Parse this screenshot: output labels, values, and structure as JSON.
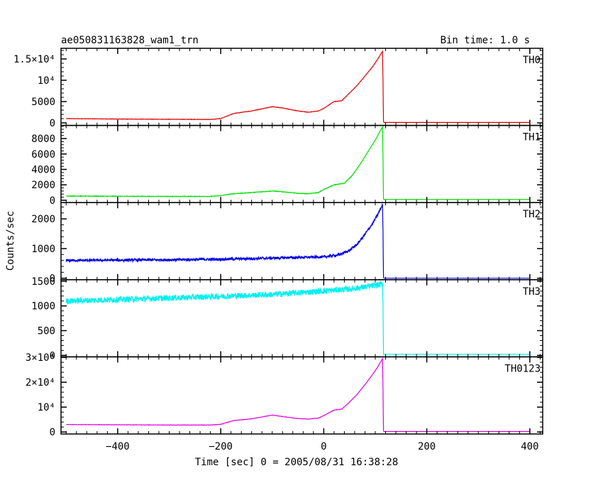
{
  "chart_data": {
    "type": "line",
    "title": "ae050831163828_wam1_trn",
    "subtitle": "Bin time: 1.0 s",
    "xlabel": "Time [sec] 0 = 2005/08/31 16:38:28",
    "ylabel": "Counts/sec",
    "xlim": [
      -510,
      425
    ],
    "x_ticks": [
      "−400",
      "−200",
      "0",
      "200",
      "400"
    ],
    "x_tick_values": [
      -400,
      -200,
      0,
      200,
      400
    ],
    "grid": false,
    "panels": [
      {
        "name": "TH0",
        "color": "#e00000",
        "ylim": [
          -600,
          17500
        ],
        "yticks": [
          {
            "v": 0,
            "label": "0"
          },
          {
            "v": 5000,
            "label": "5000"
          },
          {
            "v": 10000,
            "label": "10⁴"
          },
          {
            "v": 15000,
            "label": "1.5×10⁴"
          }
        ],
        "noise": 40,
        "x": [
          -500,
          -400,
          -300,
          -220,
          -200,
          -175,
          -140,
          -100,
          -80,
          -50,
          -30,
          -10,
          0,
          20,
          35,
          50,
          65,
          80,
          95,
          105,
          114,
          115,
          116,
          117,
          400
        ],
        "values": [
          1000,
          900,
          850,
          800,
          1000,
          2200,
          2800,
          3800,
          3500,
          2800,
          2500,
          2800,
          3400,
          5000,
          5200,
          7000,
          8800,
          11000,
          13200,
          15000,
          16800,
          10000,
          300,
          100,
          100
        ]
      },
      {
        "name": "TH1",
        "color": "#00e000",
        "ylim": [
          -300,
          9700
        ],
        "yticks": [
          {
            "v": 0,
            "label": "0"
          },
          {
            "v": 2000,
            "label": "2000"
          },
          {
            "v": 4000,
            "label": "4000"
          },
          {
            "v": 6000,
            "label": "6000"
          },
          {
            "v": 8000,
            "label": "8000"
          }
        ],
        "noise": 30,
        "x": [
          -500,
          -400,
          -300,
          -220,
          -200,
          -175,
          -140,
          -100,
          -80,
          -50,
          -30,
          -10,
          0,
          20,
          40,
          55,
          70,
          85,
          100,
          114,
          115,
          116,
          117,
          400
        ],
        "values": [
          550,
          520,
          500,
          500,
          600,
          850,
          1000,
          1200,
          1100,
          900,
          850,
          1000,
          1400,
          2000,
          2200,
          3200,
          4600,
          6200,
          7800,
          9500,
          5600,
          200,
          100,
          100
        ]
      },
      {
        "name": "TH2",
        "color": "#0000e0",
        "ylim": [
          -50,
          2550
        ],
        "yticks": [
          {
            "v": 0,
            "label": "0"
          },
          {
            "v": 1000,
            "label": "1000"
          },
          {
            "v": 2000,
            "label": "2000"
          }
        ],
        "noise": 45,
        "x": [
          -500,
          -300,
          -200,
          -100,
          -50,
          0,
          30,
          50,
          65,
          80,
          95,
          105,
          114,
          115,
          116,
          117,
          400
        ],
        "values": [
          600,
          620,
          640,
          680,
          700,
          720,
          790,
          940,
          1150,
          1480,
          1850,
          2150,
          2480,
          1600,
          30,
          0,
          0
        ]
      },
      {
        "name": "TH3",
        "color": "#00f0f0",
        "ylim": [
          -30,
          1530
        ],
        "yticks": [
          {
            "v": 0,
            "label": "0"
          },
          {
            "v": 500,
            "label": "500"
          },
          {
            "v": 1000,
            "label": "1000"
          },
          {
            "v": 1500,
            "label": "1500"
          }
        ],
        "noise": 60,
        "x": [
          -500,
          -300,
          -100,
          50,
          110,
          114,
          115,
          116,
          117,
          400
        ],
        "values": [
          1100,
          1160,
          1230,
          1340,
          1430,
          1450,
          1050,
          20,
          20,
          20
        ]
      },
      {
        "name": "TH0123",
        "color": "#e000e0",
        "ylim": [
          -800,
          30200
        ],
        "yticks": [
          {
            "v": 0,
            "label": "0"
          },
          {
            "v": 10000,
            "label": "10⁴"
          },
          {
            "v": 20000,
            "label": "2×10⁴"
          },
          {
            "v": 30000,
            "label": "3×10⁴"
          }
        ],
        "noise": 50,
        "x": [
          -500,
          -400,
          -300,
          -220,
          -200,
          -175,
          -140,
          -100,
          -80,
          -50,
          -30,
          -10,
          0,
          20,
          35,
          50,
          65,
          80,
          95,
          105,
          114,
          115,
          116,
          117,
          400
        ],
        "values": [
          3000,
          2900,
          2800,
          2800,
          3100,
          4600,
          5300,
          6800,
          6200,
          5400,
          5200,
          5600,
          6600,
          8800,
          9200,
          12000,
          15200,
          19000,
          23200,
          26200,
          29500,
          17000,
          400,
          200,
          200
        ]
      }
    ]
  }
}
